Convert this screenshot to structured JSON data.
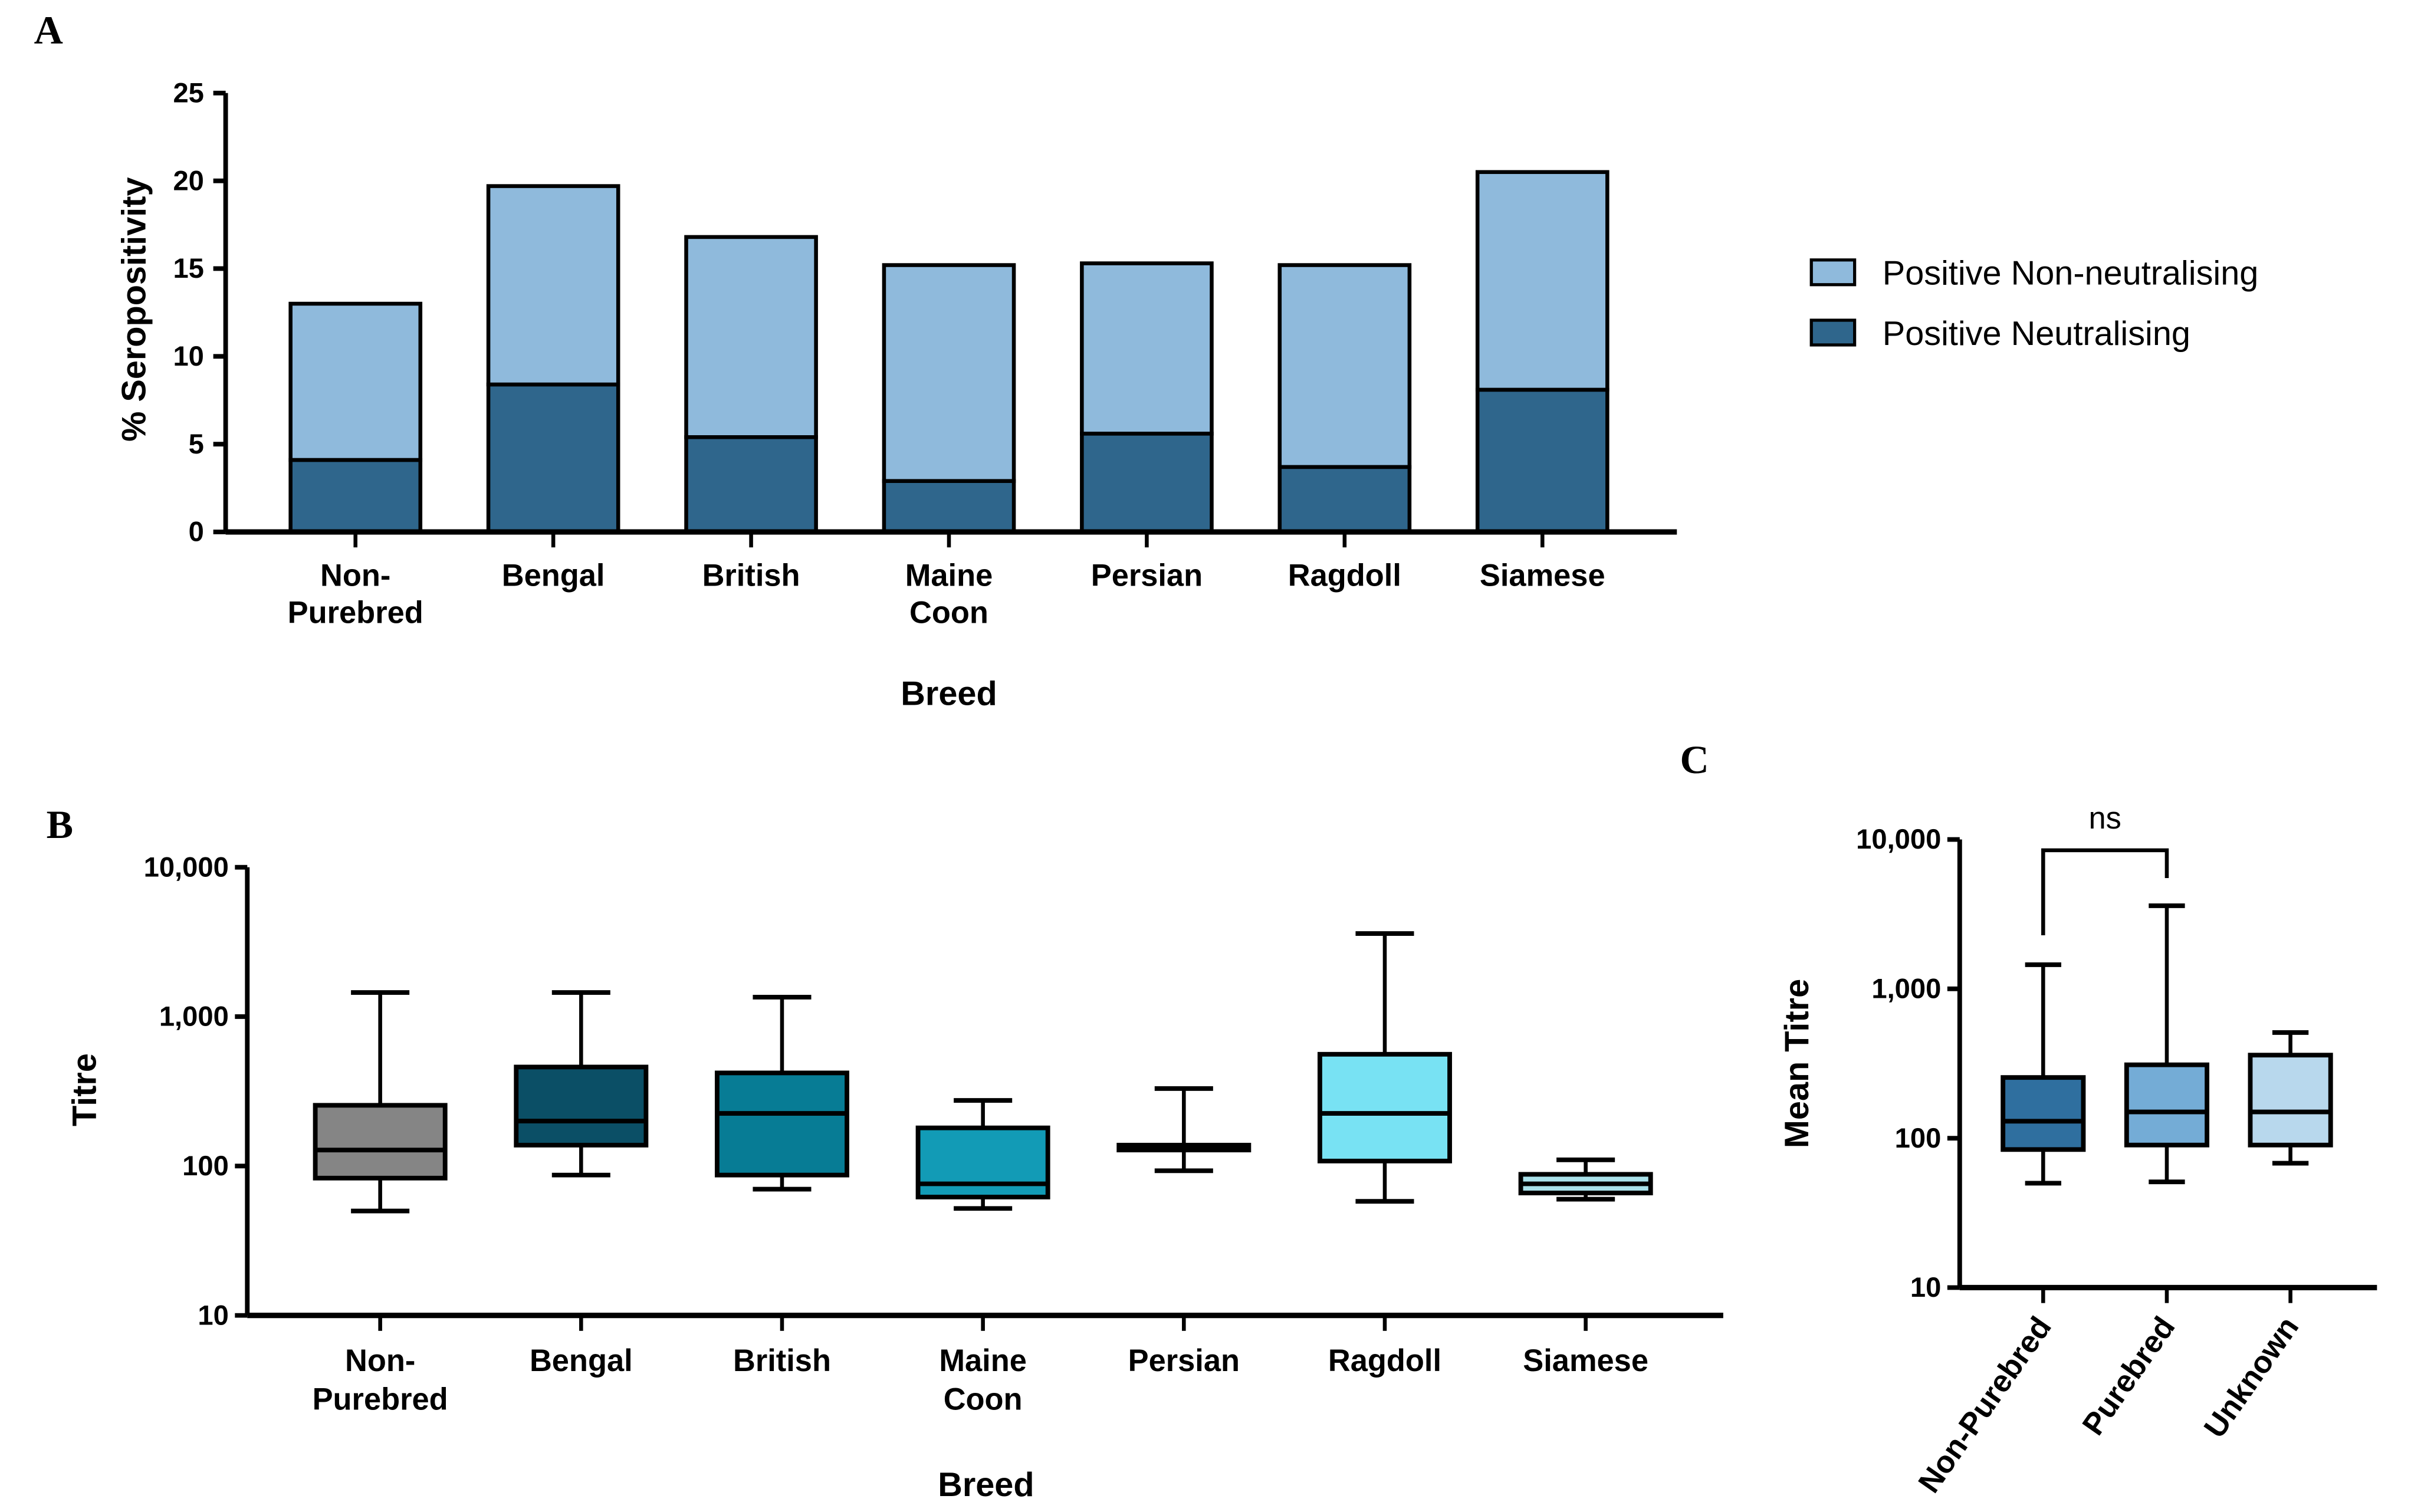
{
  "chart_data": [
    {
      "panel": "A",
      "type": "bar",
      "stacked": true,
      "xlabel": "Breed",
      "ylabel": "% Seropositivity",
      "ylim": [
        0,
        25
      ],
      "yticks": [
        0,
        5,
        10,
        15,
        20,
        25
      ],
      "categories": [
        [
          "Non-",
          "Purebred"
        ],
        [
          "Bengal"
        ],
        [
          "British"
        ],
        [
          "Maine",
          "Coon"
        ],
        [
          "Persian"
        ],
        [
          "Ragdoll"
        ],
        [
          "Siamese"
        ]
      ],
      "series": [
        {
          "name": "Positive Neutralising",
          "color": "#2f668c",
          "values": [
            4.1,
            8.4,
            5.4,
            2.9,
            5.6,
            3.7,
            8.1
          ]
        },
        {
          "name": "Positive Non-neutralising",
          "color": "#8fbadc",
          "values": [
            8.9,
            11.3,
            11.4,
            12.3,
            9.7,
            11.5,
            12.4
          ]
        }
      ],
      "legend": [
        "Positive Non-neutralising",
        "Positive Neutralising"
      ],
      "legend_position": "right"
    },
    {
      "panel": "B",
      "type": "box",
      "xlabel": "Breed",
      "ylabel": "Titre",
      "yscale": "log",
      "ylim": [
        10,
        10000
      ],
      "yticks": [
        "10",
        "100",
        "1,000",
        "10,000"
      ],
      "categories": [
        [
          "Non-",
          "Purebred"
        ],
        [
          "Bengal"
        ],
        [
          "British"
        ],
        [
          "Maine",
          "Coon"
        ],
        [
          "Persian"
        ],
        [
          "Ragdoll"
        ],
        [
          "Siamese"
        ]
      ],
      "boxes": [
        {
          "min": 50,
          "q1": 83,
          "median": 128,
          "q3": 255,
          "max": 1450,
          "color": "#858585"
        },
        {
          "min": 87,
          "q1": 138,
          "median": 200,
          "q3": 460,
          "max": 1450,
          "color": "#0b4f66"
        },
        {
          "min": 70,
          "q1": 87,
          "median": 225,
          "q3": 420,
          "max": 1350,
          "color": "#077c95"
        },
        {
          "min": 52,
          "q1": 62,
          "median": 76,
          "q3": 180,
          "max": 275,
          "color": "#129bb6"
        },
        {
          "min": 93,
          "q1": 128,
          "median": 133,
          "q3": 138,
          "max": 330,
          "color": "#3bb8cf"
        },
        {
          "min": 58,
          "q1": 108,
          "median": 225,
          "q3": 560,
          "max": 3600,
          "color": "#78e2f3"
        },
        {
          "min": 60,
          "q1": 66,
          "median": 76,
          "q3": 88,
          "max": 110,
          "color": "#a9e1ea"
        }
      ]
    },
    {
      "panel": "C",
      "type": "box",
      "xlabel": "",
      "ylabel": "Mean Titre",
      "yscale": "log",
      "ylim": [
        10,
        10000
      ],
      "yticks": [
        "10",
        "100",
        "1,000",
        "10,000"
      ],
      "categories": [
        "Non-Purebred",
        "Purebred",
        "Unknown"
      ],
      "boxes": [
        {
          "min": 50,
          "q1": 84,
          "median": 130,
          "q3": 255,
          "max": 1450,
          "color": "#2f6f9f"
        },
        {
          "min": 51,
          "q1": 90,
          "median": 150,
          "q3": 310,
          "max": 3600,
          "color": "#74acd6"
        },
        {
          "min": 68,
          "q1": 90,
          "median": 150,
          "q3": 360,
          "max": 510,
          "color": "#b8d8ed"
        }
      ],
      "annotation": {
        "text": "ns",
        "between": [
          "Non-Purebred",
          "Purebred"
        ]
      }
    }
  ]
}
